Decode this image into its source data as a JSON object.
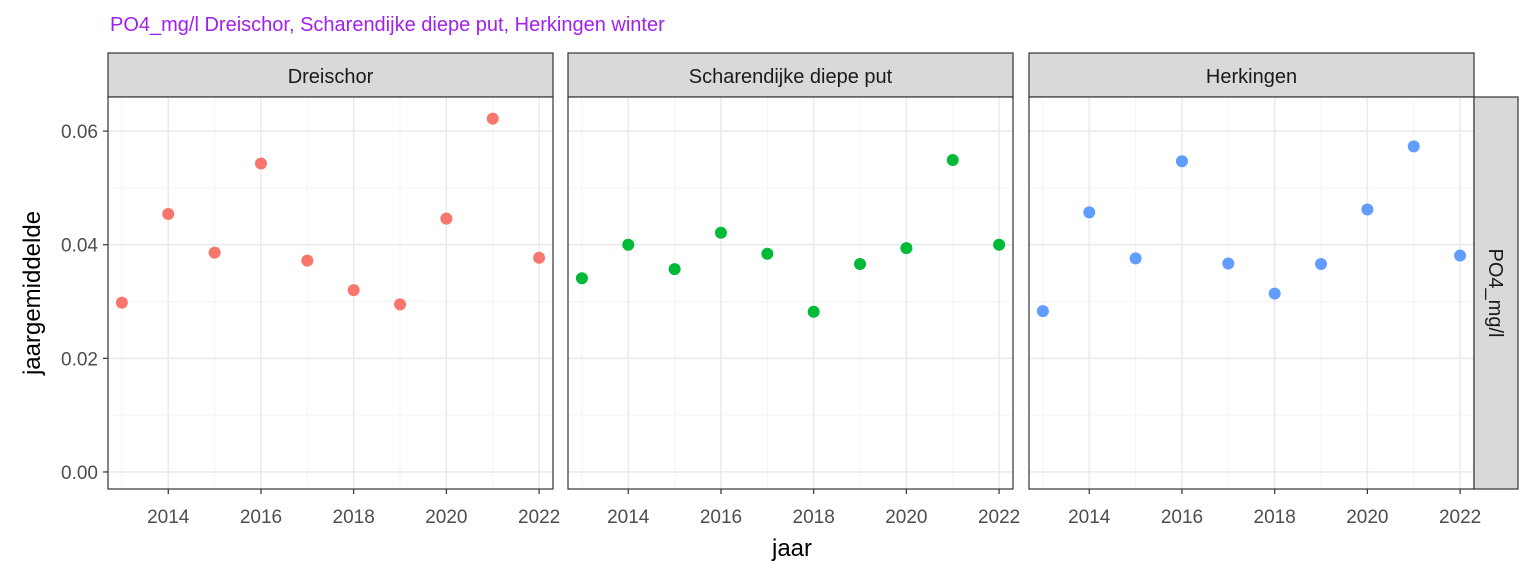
{
  "title": "PO4_mg/l Dreischor, Scharendijke diepe put, Herkingen winter",
  "colors": {
    "title": "#a020f0",
    "strip_fill": "#d9d9d9",
    "panel_border": "#333333",
    "grid_major": "#ebebeb",
    "grid_minor": "#f5f5f5",
    "tick_text": "#4d4d4d"
  },
  "chart_data": {
    "type": "scatter",
    "xlabel": "jaar",
    "ylabel": "jaargemiddelde",
    "row_strip": "PO4_mg/l",
    "xlim": [
      2012.7,
      2022.3
    ],
    "ylim": [
      -0.003,
      0.066
    ],
    "x_ticks": [
      2014,
      2016,
      2018,
      2020,
      2022
    ],
    "x_tick_labels": [
      "2014",
      "2016",
      "2018",
      "2020",
      "2022"
    ],
    "y_ticks": [
      0,
      0.02,
      0.04,
      0.06
    ],
    "y_tick_labels": [
      "0.00",
      "0.02",
      "0.04",
      "0.06"
    ],
    "grid": true,
    "x": [
      2013,
      2014,
      2015,
      2016,
      2017,
      2018,
      2019,
      2020,
      2021,
      2022
    ],
    "series": [
      {
        "name": "Dreischor",
        "color": "#f8766d",
        "values": [
          0.0298,
          0.0454,
          0.0386,
          0.0543,
          0.0372,
          0.032,
          0.0295,
          0.0446,
          0.0622,
          0.0377
        ]
      },
      {
        "name": "Scharendijke diepe put",
        "color": "#00ba38",
        "values": [
          0.0341,
          0.04,
          0.0357,
          0.0421,
          0.0384,
          0.0282,
          0.0366,
          0.0394,
          0.0549,
          0.04
        ]
      },
      {
        "name": "Herkingen",
        "color": "#619cff",
        "values": [
          0.0283,
          0.0457,
          0.0376,
          0.0547,
          0.0367,
          0.0314,
          0.0366,
          0.0462,
          0.0573,
          0.0381
        ]
      }
    ]
  }
}
